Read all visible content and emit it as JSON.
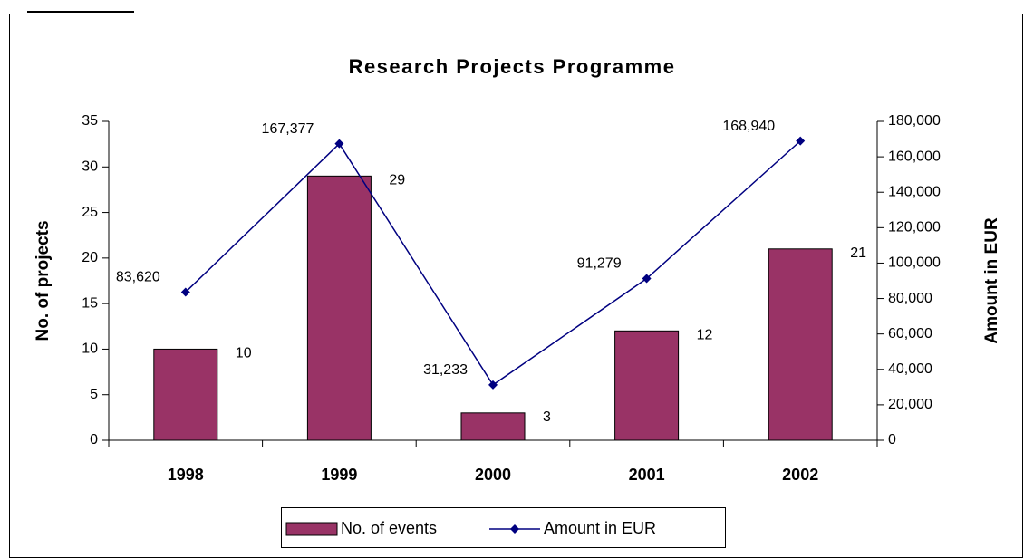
{
  "chart_data": {
    "type": "bar",
    "title": "Research Projects Programme",
    "categories": [
      "1998",
      "1999",
      "2000",
      "2001",
      "2002"
    ],
    "y_label": "No. of projects",
    "y2_label": "Amount in EUR",
    "ylim": [
      0,
      35
    ],
    "yticks": [
      0,
      5,
      10,
      15,
      20,
      25,
      30,
      35
    ],
    "y2lim": [
      0,
      180000
    ],
    "y2ticks": [
      0,
      {
        "value": 20000,
        "label": "20,000"
      },
      {
        "value": 40000,
        "label": "40,000"
      },
      {
        "value": 60000,
        "label": "60,000"
      },
      {
        "value": 80000,
        "label": "80,000"
      },
      {
        "value": 100000,
        "label": "100,000"
      },
      {
        "value": 120000,
        "label": "120,000"
      },
      {
        "value": 140000,
        "label": "140,000"
      },
      {
        "value": 160000,
        "label": "160,000"
      },
      {
        "value": 180000,
        "label": "180,000"
      }
    ],
    "grid": false,
    "legend": "bottom",
    "series": [
      {
        "name": "No. of events",
        "type": "bar",
        "color": "#993366",
        "values": [
          10,
          29,
          3,
          12,
          21
        ]
      },
      {
        "name": "Amount in EUR",
        "type": "line",
        "axis": "y2",
        "color": "#000080",
        "values": [
          83620,
          167377,
          31233,
          91279,
          168940
        ],
        "value_labels": [
          "83,620",
          "167,377",
          "31,233",
          "91,279",
          "168,940"
        ]
      }
    ]
  }
}
